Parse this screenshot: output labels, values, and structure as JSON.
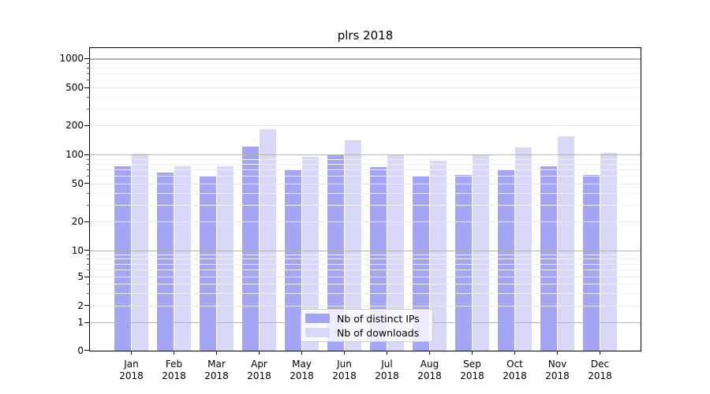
{
  "chart_data": {
    "type": "bar",
    "title": "plrs 2018",
    "x": {
      "categories": [
        "Jan",
        "Feb",
        "Mar",
        "Apr",
        "May",
        "Jun",
        "Jul",
        "Aug",
        "Sep",
        "Oct",
        "Nov",
        "Dec"
      ],
      "year_sublabel": "2018"
    },
    "series": [
      {
        "name": "Nb of distinct IPs",
        "color": "#a5a5f5",
        "values": [
          75,
          65,
          59,
          122,
          68,
          98,
          74,
          60,
          61,
          69,
          75,
          61
        ]
      },
      {
        "name": "Nb of downloads",
        "color": "#d8d8f8",
        "values": [
          102,
          75,
          76,
          183,
          95,
          142,
          101,
          86,
          100,
          119,
          155,
          104
        ]
      }
    ],
    "y_axis": {
      "scale": "symlog",
      "major_ticks": [
        0,
        1,
        2,
        5,
        10,
        20,
        50,
        100,
        200,
        500,
        1000
      ],
      "minor_ticks": [
        3,
        4,
        6,
        7,
        8,
        9,
        30,
        40,
        60,
        70,
        80,
        90,
        300,
        400,
        600,
        700,
        800,
        900
      ],
      "ylim_top_approx": 1270
    },
    "legend": {
      "position": "lower center"
    },
    "grid": true,
    "grid_over_bars": true
  },
  "colors": {
    "bar_dark": "#a5a5f5",
    "bar_light": "#d8d8f8",
    "grid_decade": "#b2b2b2",
    "grid_major": "#e7e7e7",
    "grid_minor": "#f1f1f1",
    "spine": "#000000",
    "text": "#000000",
    "legend_border": "#cccccc"
  }
}
